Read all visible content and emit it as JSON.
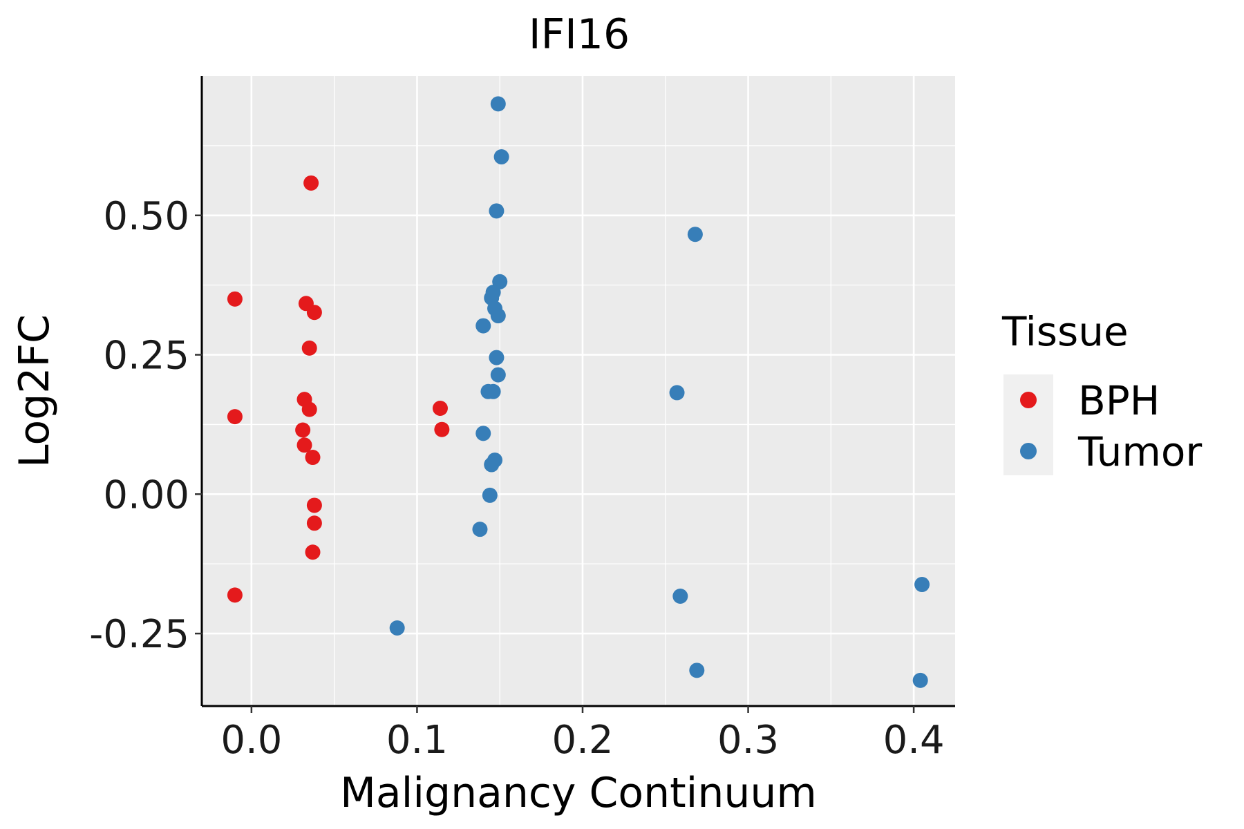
{
  "chart_data": {
    "type": "scatter",
    "title": "IFI16",
    "xlabel": "Malignancy Continuum",
    "ylabel": "Log2FC",
    "xlim": [
      -0.03,
      0.425
    ],
    "ylim": [
      -0.38,
      0.75
    ],
    "x_ticks": [
      0.0,
      0.1,
      0.2,
      0.3,
      0.4
    ],
    "x_tick_labels": [
      "0.0",
      "0.1",
      "0.2",
      "0.3",
      "0.4"
    ],
    "y_ticks": [
      -0.25,
      0.0,
      0.25,
      0.5
    ],
    "y_tick_labels": [
      "-0.25",
      "0.00",
      "0.25",
      "0.50"
    ],
    "grid": true,
    "legend": {
      "title": "Tissue",
      "position": "right"
    },
    "series": [
      {
        "name": "BPH",
        "color": "#E41A1C",
        "points": [
          {
            "x": 0.036,
            "y": 0.558
          },
          {
            "x": -0.01,
            "y": 0.35
          },
          {
            "x": 0.033,
            "y": 0.342
          },
          {
            "x": 0.038,
            "y": 0.326
          },
          {
            "x": 0.035,
            "y": 0.262
          },
          {
            "x": 0.032,
            "y": 0.17
          },
          {
            "x": 0.035,
            "y": 0.152
          },
          {
            "x": -0.01,
            "y": 0.139
          },
          {
            "x": 0.114,
            "y": 0.154
          },
          {
            "x": 0.115,
            "y": 0.116
          },
          {
            "x": 0.031,
            "y": 0.115
          },
          {
            "x": 0.032,
            "y": 0.088
          },
          {
            "x": 0.037,
            "y": 0.066
          },
          {
            "x": 0.038,
            "y": -0.02
          },
          {
            "x": 0.038,
            "y": -0.052
          },
          {
            "x": 0.037,
            "y": -0.104
          },
          {
            "x": -0.01,
            "y": -0.181
          }
        ]
      },
      {
        "name": "Tumor",
        "color": "#377EB8",
        "points": [
          {
            "x": 0.149,
            "y": 0.7
          },
          {
            "x": 0.151,
            "y": 0.605
          },
          {
            "x": 0.148,
            "y": 0.508
          },
          {
            "x": 0.268,
            "y": 0.466
          },
          {
            "x": 0.15,
            "y": 0.381
          },
          {
            "x": 0.146,
            "y": 0.362
          },
          {
            "x": 0.145,
            "y": 0.352
          },
          {
            "x": 0.147,
            "y": 0.333
          },
          {
            "x": 0.149,
            "y": 0.32
          },
          {
            "x": 0.14,
            "y": 0.302
          },
          {
            "x": 0.148,
            "y": 0.245
          },
          {
            "x": 0.149,
            "y": 0.214
          },
          {
            "x": 0.143,
            "y": 0.184
          },
          {
            "x": 0.146,
            "y": 0.184
          },
          {
            "x": 0.257,
            "y": 0.182
          },
          {
            "x": 0.14,
            "y": 0.109
          },
          {
            "x": 0.147,
            "y": 0.061
          },
          {
            "x": 0.145,
            "y": 0.053
          },
          {
            "x": 0.144,
            "y": -0.002
          },
          {
            "x": 0.138,
            "y": -0.063
          },
          {
            "x": 0.405,
            "y": -0.162
          },
          {
            "x": 0.259,
            "y": -0.183
          },
          {
            "x": 0.088,
            "y": -0.24
          },
          {
            "x": 0.269,
            "y": -0.316
          },
          {
            "x": 0.404,
            "y": -0.334
          }
        ]
      }
    ]
  }
}
